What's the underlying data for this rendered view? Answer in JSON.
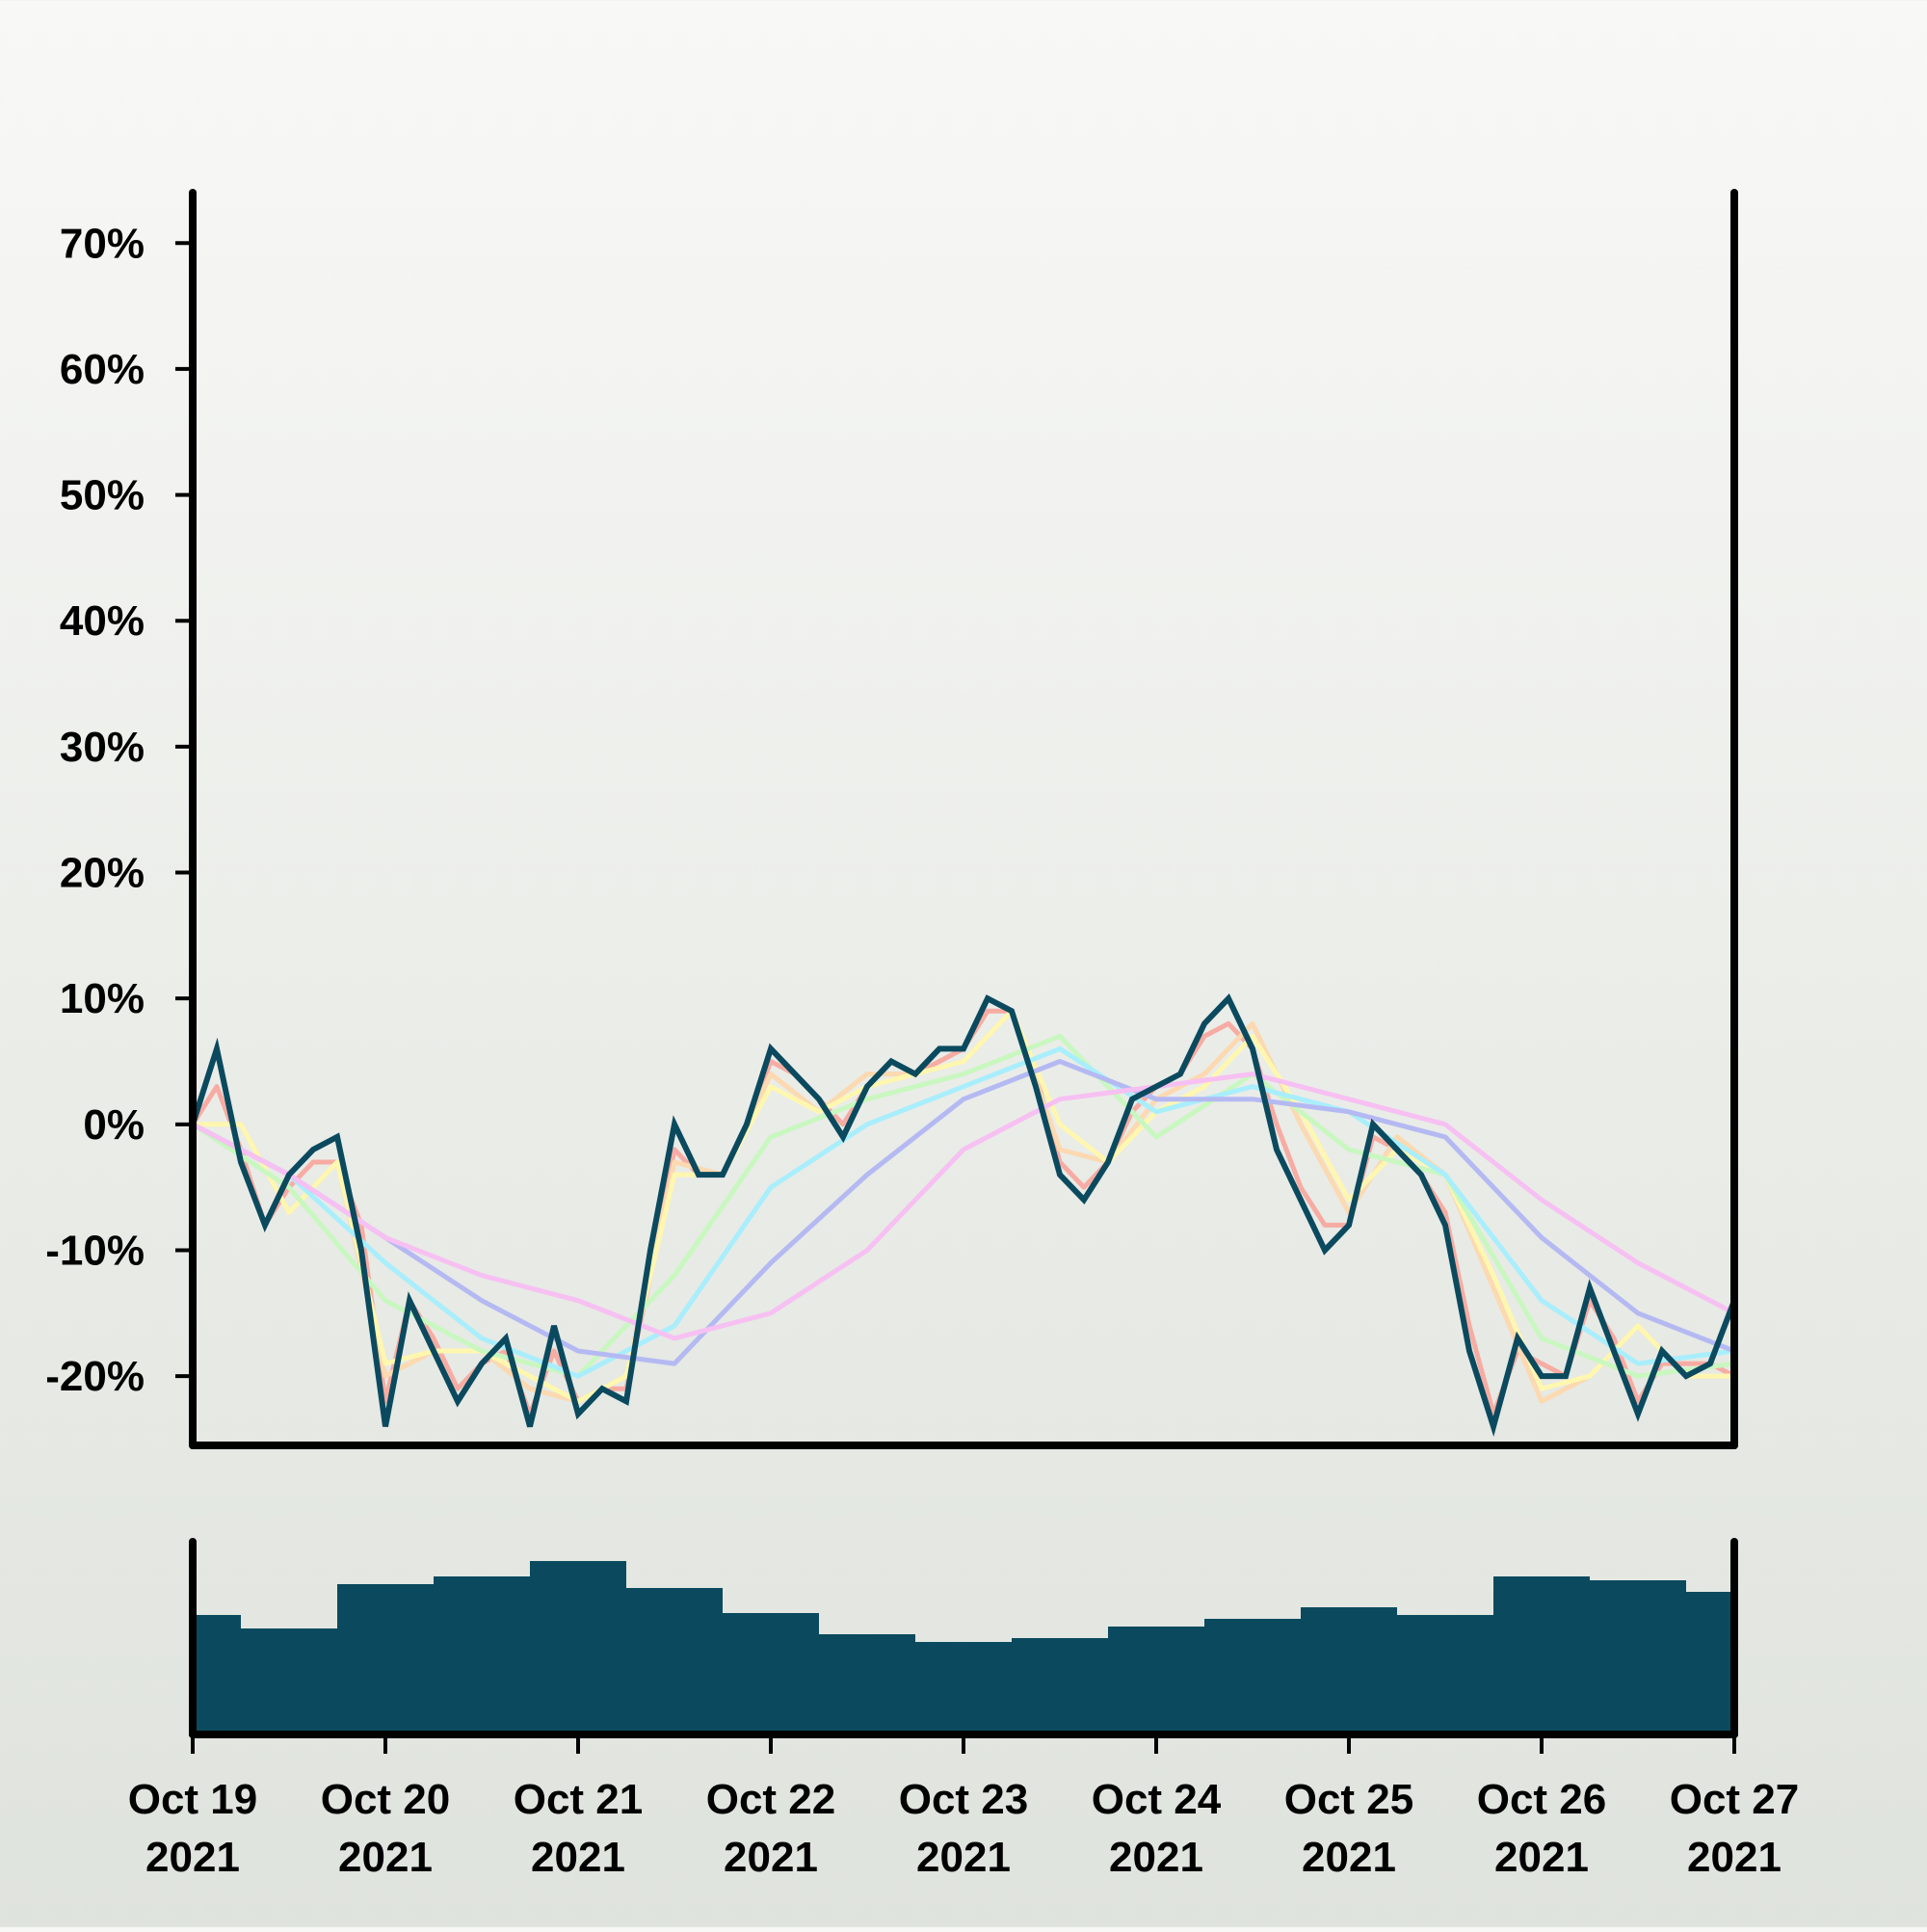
{
  "chart_data": {
    "type": "line",
    "title": "",
    "xlabel": "",
    "ylabel": "",
    "ylim": [
      -25.5,
      74
    ],
    "y_ticks": [
      {
        "value": -20,
        "label": "-20%"
      },
      {
        "value": -10,
        "label": "-10%"
      },
      {
        "value": 0,
        "label": "0%"
      },
      {
        "value": 10,
        "label": "10%"
      },
      {
        "value": 20,
        "label": "20%"
      },
      {
        "value": 30,
        "label": "30%"
      },
      {
        "value": 40,
        "label": "40%"
      },
      {
        "value": 50,
        "label": "50%"
      },
      {
        "value": 60,
        "label": "60%"
      },
      {
        "value": 70,
        "label": "70%"
      }
    ],
    "x_ticks": [
      {
        "date": "2021-10-19",
        "label_line1": "Oct 19",
        "label_line2": "2021"
      },
      {
        "date": "2021-10-20",
        "label_line1": "Oct 20",
        "label_line2": "2021"
      },
      {
        "date": "2021-10-21",
        "label_line1": "Oct 21",
        "label_line2": "2021"
      },
      {
        "date": "2021-10-22",
        "label_line1": "Oct 22",
        "label_line2": "2021"
      },
      {
        "date": "2021-10-23",
        "label_line1": "Oct 23",
        "label_line2": "2021"
      },
      {
        "date": "2021-10-24",
        "label_line1": "Oct 24",
        "label_line2": "2021"
      },
      {
        "date": "2021-10-25",
        "label_line1": "Oct 25",
        "label_line2": "2021"
      },
      {
        "date": "2021-10-26",
        "label_line1": "Oct 26",
        "label_line2": "2021"
      },
      {
        "date": "2021-10-27",
        "label_line1": "Oct 27",
        "label_line2": "2021"
      }
    ],
    "xlim": [
      "2021-10-19T00:00",
      "2021-10-27T00:00"
    ],
    "grid": false,
    "legend": "none",
    "price_series": {
      "color": "#0b4a5e",
      "x": [
        "2021-10-19T00:00",
        "2021-10-19T03:00",
        "2021-10-19T06:00",
        "2021-10-19T09:00",
        "2021-10-19T12:00",
        "2021-10-19T15:00",
        "2021-10-19T18:00",
        "2021-10-19T21:00",
        "2021-10-20T00:00",
        "2021-10-20T03:00",
        "2021-10-20T06:00",
        "2021-10-20T09:00",
        "2021-10-20T12:00",
        "2021-10-20T15:00",
        "2021-10-20T18:00",
        "2021-10-20T21:00",
        "2021-10-21T00:00",
        "2021-10-21T03:00",
        "2021-10-21T06:00",
        "2021-10-21T09:00",
        "2021-10-21T12:00",
        "2021-10-21T15:00",
        "2021-10-21T18:00",
        "2021-10-21T21:00",
        "2021-10-22T00:00",
        "2021-10-22T03:00",
        "2021-10-22T06:00",
        "2021-10-22T09:00",
        "2021-10-22T12:00",
        "2021-10-22T15:00",
        "2021-10-22T18:00",
        "2021-10-22T21:00",
        "2021-10-23T00:00",
        "2021-10-23T03:00",
        "2021-10-23T06:00",
        "2021-10-23T09:00",
        "2021-10-23T12:00",
        "2021-10-23T15:00",
        "2021-10-23T18:00",
        "2021-10-23T21:00",
        "2021-10-24T00:00",
        "2021-10-24T03:00",
        "2021-10-24T06:00",
        "2021-10-24T09:00",
        "2021-10-24T12:00",
        "2021-10-24T15:00",
        "2021-10-24T18:00",
        "2021-10-24T21:00",
        "2021-10-25T00:00",
        "2021-10-25T03:00",
        "2021-10-25T06:00",
        "2021-10-25T09:00",
        "2021-10-25T12:00",
        "2021-10-25T15:00",
        "2021-10-25T18:00",
        "2021-10-25T21:00",
        "2021-10-26T00:00",
        "2021-10-26T03:00",
        "2021-10-26T06:00",
        "2021-10-26T09:00",
        "2021-10-26T12:00",
        "2021-10-26T15:00",
        "2021-10-26T18:00",
        "2021-10-26T21:00",
        "2021-10-27T00:00"
      ],
      "y": [
        0,
        6,
        -3,
        -8,
        -4,
        -2,
        -1,
        -10,
        -24,
        -14,
        -18,
        -22,
        -19,
        -17,
        -24,
        -16,
        -23,
        -21,
        -22,
        -10,
        0,
        -4,
        -4,
        0,
        6,
        4,
        2,
        -1,
        3,
        5,
        4,
        6,
        6,
        10,
        9,
        3,
        -4,
        -6,
        -3,
        2,
        3,
        4,
        8,
        10,
        6,
        -2,
        -6,
        -10,
        -8,
        0,
        -2,
        -4,
        -8,
        -18,
        -24,
        -17,
        -20,
        -20,
        -13,
        -18,
        -23,
        -18,
        -20,
        -19,
        -14
      ]
    },
    "series": [
      {
        "color": "#f7aca3",
        "x": [
          "2021-10-19T00:00",
          "2021-10-19T03:00",
          "2021-10-19T06:00",
          "2021-10-19T09:00",
          "2021-10-19T12:00",
          "2021-10-19T15:00",
          "2021-10-19T18:00",
          "2021-10-19T21:00",
          "2021-10-20T00:00",
          "2021-10-20T03:00",
          "2021-10-20T06:00",
          "2021-10-20T09:00",
          "2021-10-20T12:00",
          "2021-10-20T15:00",
          "2021-10-20T18:00",
          "2021-10-20T21:00",
          "2021-10-21T00:00",
          "2021-10-21T03:00",
          "2021-10-21T06:00",
          "2021-10-21T09:00",
          "2021-10-21T12:00",
          "2021-10-21T15:00",
          "2021-10-21T18:00",
          "2021-10-21T21:00",
          "2021-10-22T00:00",
          "2021-10-22T03:00",
          "2021-10-22T06:00",
          "2021-10-22T09:00",
          "2021-10-22T12:00",
          "2021-10-22T15:00",
          "2021-10-22T18:00",
          "2021-10-22T21:00",
          "2021-10-23T00:00",
          "2021-10-23T03:00",
          "2021-10-23T06:00",
          "2021-10-23T09:00",
          "2021-10-23T12:00",
          "2021-10-23T15:00",
          "2021-10-23T18:00",
          "2021-10-23T21:00",
          "2021-10-24T00:00",
          "2021-10-24T03:00",
          "2021-10-24T06:00",
          "2021-10-24T09:00",
          "2021-10-24T12:00",
          "2021-10-24T15:00",
          "2021-10-24T18:00",
          "2021-10-24T21:00",
          "2021-10-25T00:00",
          "2021-10-25T03:00",
          "2021-10-25T06:00",
          "2021-10-25T09:00",
          "2021-10-25T12:00",
          "2021-10-25T15:00",
          "2021-10-25T18:00",
          "2021-10-25T21:00",
          "2021-10-26T00:00",
          "2021-10-26T03:00",
          "2021-10-26T06:00",
          "2021-10-26T09:00",
          "2021-10-26T12:00",
          "2021-10-26T15:00",
          "2021-10-26T18:00",
          "2021-10-26T21:00",
          "2021-10-27T00:00"
        ],
        "y": [
          0,
          3,
          -2,
          -8,
          -5,
          -3,
          -3,
          -8,
          -22,
          -14,
          -17,
          -21,
          -19,
          -18,
          -23,
          -18,
          -22,
          -21,
          -21,
          -12,
          -2,
          -4,
          -4,
          0,
          5,
          4,
          2,
          0,
          3,
          5,
          4,
          5,
          6,
          9,
          9,
          4,
          -3,
          -5,
          -3,
          1,
          3,
          4,
          7,
          8,
          6,
          0,
          -5,
          -8,
          -8,
          -1,
          -2,
          -4,
          -7,
          -16,
          -23,
          -18,
          -19,
          -20,
          -14,
          -17,
          -22,
          -19,
          -19,
          -19,
          -20
        ]
      },
      {
        "color": "#fcd9b0",
        "x": [
          "2021-10-19T00:00",
          "2021-10-19T06:00",
          "2021-10-19T12:00",
          "2021-10-19T18:00",
          "2021-10-20T00:00",
          "2021-10-20T06:00",
          "2021-10-20T12:00",
          "2021-10-20T18:00",
          "2021-10-21T00:00",
          "2021-10-21T06:00",
          "2021-10-21T12:00",
          "2021-10-21T18:00",
          "2021-10-22T00:00",
          "2021-10-22T06:00",
          "2021-10-22T12:00",
          "2021-10-22T18:00",
          "2021-10-23T00:00",
          "2021-10-23T06:00",
          "2021-10-23T12:00",
          "2021-10-23T18:00",
          "2021-10-24T00:00",
          "2021-10-24T06:00",
          "2021-10-24T12:00",
          "2021-10-24T18:00",
          "2021-10-25T00:00",
          "2021-10-25T06:00",
          "2021-10-25T12:00",
          "2021-10-25T18:00",
          "2021-10-26T00:00",
          "2021-10-26T06:00",
          "2021-10-26T12:00",
          "2021-10-26T18:00",
          "2021-10-27T00:00"
        ],
        "y": [
          0,
          0,
          -7,
          -3,
          -20,
          -18,
          -18,
          -21,
          -22,
          -20,
          -3,
          -4,
          4,
          1,
          4,
          4,
          5,
          9,
          -2,
          -3,
          2,
          4,
          8,
          0,
          -7,
          -1,
          -4,
          -13,
          -22,
          -20,
          -16,
          -20,
          -20
        ]
      },
      {
        "color": "#fff7b0",
        "x": [
          "2021-10-19T00:00",
          "2021-10-19T06:00",
          "2021-10-19T12:00",
          "2021-10-19T18:00",
          "2021-10-20T00:00",
          "2021-10-20T06:00",
          "2021-10-20T12:00",
          "2021-10-20T18:00",
          "2021-10-21T00:00",
          "2021-10-21T06:00",
          "2021-10-21T12:00",
          "2021-10-21T18:00",
          "2021-10-22T00:00",
          "2021-10-22T06:00",
          "2021-10-22T12:00",
          "2021-10-22T18:00",
          "2021-10-23T00:00",
          "2021-10-23T06:00",
          "2021-10-23T12:00",
          "2021-10-23T18:00",
          "2021-10-24T00:00",
          "2021-10-24T06:00",
          "2021-10-24T12:00",
          "2021-10-24T18:00",
          "2021-10-25T00:00",
          "2021-10-25T06:00",
          "2021-10-25T12:00",
          "2021-10-25T18:00",
          "2021-10-26T00:00",
          "2021-10-26T06:00",
          "2021-10-26T12:00",
          "2021-10-26T18:00",
          "2021-10-27T00:00"
        ],
        "y": [
          0,
          0,
          -7,
          -3,
          -19,
          -18,
          -18,
          -20,
          -22,
          -20,
          -4,
          -4,
          3,
          1,
          3,
          4,
          5,
          9,
          0,
          -3,
          1,
          3,
          7,
          1,
          -6,
          -2,
          -4,
          -12,
          -21,
          -20,
          -16,
          -20,
          -20
        ]
      },
      {
        "color": "#c9f7c0",
        "x": [
          "2021-10-19T00:00",
          "2021-10-19T12:00",
          "2021-10-20T00:00",
          "2021-10-20T12:00",
          "2021-10-21T00:00",
          "2021-10-21T12:00",
          "2021-10-22T00:00",
          "2021-10-22T12:00",
          "2021-10-23T00:00",
          "2021-10-23T12:00",
          "2021-10-24T00:00",
          "2021-10-24T12:00",
          "2021-10-25T00:00",
          "2021-10-25T12:00",
          "2021-10-26T00:00",
          "2021-10-26T12:00",
          "2021-10-27T00:00"
        ],
        "y": [
          0,
          -5,
          -14,
          -18,
          -20,
          -12,
          -1,
          2,
          4,
          7,
          -1,
          4,
          -2,
          -4,
          -17,
          -20,
          -19
        ]
      },
      {
        "color": "#a9eefc",
        "x": [
          "2021-10-19T00:00",
          "2021-10-19T12:00",
          "2021-10-20T00:00",
          "2021-10-20T12:00",
          "2021-10-21T00:00",
          "2021-10-21T12:00",
          "2021-10-22T00:00",
          "2021-10-22T12:00",
          "2021-10-23T00:00",
          "2021-10-23T12:00",
          "2021-10-24T00:00",
          "2021-10-24T12:00",
          "2021-10-25T00:00",
          "2021-10-25T12:00",
          "2021-10-26T00:00",
          "2021-10-26T12:00",
          "2021-10-27T00:00"
        ],
        "y": [
          0,
          -4,
          -11,
          -17,
          -20,
          -16,
          -5,
          0,
          3,
          6,
          1,
          3,
          1,
          -4,
          -14,
          -19,
          -18
        ]
      },
      {
        "color": "#b5b9f2",
        "x": [
          "2021-10-19T00:00",
          "2021-10-19T12:00",
          "2021-10-20T00:00",
          "2021-10-20T12:00",
          "2021-10-21T00:00",
          "2021-10-21T12:00",
          "2021-10-22T00:00",
          "2021-10-22T12:00",
          "2021-10-23T00:00",
          "2021-10-23T12:00",
          "2021-10-24T00:00",
          "2021-10-24T12:00",
          "2021-10-25T00:00",
          "2021-10-25T12:00",
          "2021-10-26T00:00",
          "2021-10-26T12:00",
          "2021-10-27T00:00"
        ],
        "y": [
          0,
          -4,
          -9,
          -14,
          -18,
          -19,
          -11,
          -4,
          2,
          5,
          2,
          2,
          1,
          -1,
          -9,
          -15,
          -18
        ]
      },
      {
        "color": "#f7c0f2",
        "x": [
          "2021-10-19T00:00",
          "2021-10-19T12:00",
          "2021-10-20T00:00",
          "2021-10-20T12:00",
          "2021-10-21T00:00",
          "2021-10-21T12:00",
          "2021-10-22T00:00",
          "2021-10-22T12:00",
          "2021-10-23T00:00",
          "2021-10-23T12:00",
          "2021-10-24T00:00",
          "2021-10-24T12:00",
          "2021-10-25T00:00",
          "2021-10-25T12:00",
          "2021-10-26T00:00",
          "2021-10-26T12:00",
          "2021-10-27T00:00"
        ],
        "y": [
          0,
          -4,
          -9,
          -12,
          -14,
          -17,
          -15,
          -10,
          -2,
          2,
          3,
          4,
          2,
          0,
          -6,
          -11,
          -15
        ]
      }
    ],
    "volume": {
      "color": "#0b4a5e",
      "x": [
        "2021-10-19T00:00",
        "2021-10-19T12:00",
        "2021-10-20T00:00",
        "2021-10-20T12:00",
        "2021-10-21T00:00",
        "2021-10-21T12:00",
        "2021-10-22T00:00",
        "2021-10-22T12:00",
        "2021-10-23T00:00",
        "2021-10-23T12:00",
        "2021-10-24T00:00",
        "2021-10-24T12:00",
        "2021-10-25T00:00",
        "2021-10-25T12:00",
        "2021-10-26T00:00",
        "2021-10-26T12:00",
        "2021-10-27T00:00"
      ],
      "values": [
        0.62,
        0.55,
        0.78,
        0.82,
        0.9,
        0.76,
        0.63,
        0.52,
        0.48,
        0.5,
        0.56,
        0.6,
        0.66,
        0.62,
        0.82,
        0.8,
        0.74
      ]
    }
  }
}
